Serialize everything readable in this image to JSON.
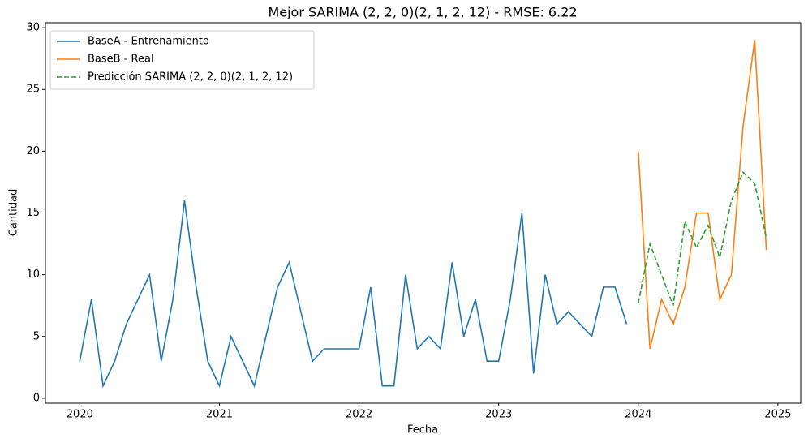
{
  "chart_data": {
    "type": "line",
    "title": "Mejor SARIMA (2, 2, 0)(2, 1, 2, 12) - RMSE: 6.22",
    "x_label": "Fecha",
    "y_label": "Cantidad",
    "xlim": [
      2019.754,
      2025.163
    ],
    "xticks": [
      2020,
      2021,
      2022,
      2023,
      2024,
      2025
    ],
    "ylim": [
      -0.4,
      30.4
    ],
    "yticks": [
      0,
      5,
      10,
      15,
      20,
      25,
      30
    ],
    "legend": "upper left",
    "grid": false,
    "series": [
      {
        "name": "BaseA - Entrenamiento",
        "color": "#1f77b4",
        "dash": "solid",
        "x": [
          2020,
          2020.0833,
          2020.1667,
          2020.25,
          2020.3333,
          2020.4167,
          2020.5,
          2020.5833,
          2020.6667,
          2020.75,
          2020.8333,
          2020.9167,
          2021,
          2021.0833,
          2021.1667,
          2021.25,
          2021.3333,
          2021.4167,
          2021.5,
          2021.5833,
          2021.6667,
          2021.75,
          2021.8333,
          2021.9167,
          2022,
          2022.0833,
          2022.1667,
          2022.25,
          2022.3333,
          2022.4167,
          2022.5,
          2022.5833,
          2022.6667,
          2022.75,
          2022.8333,
          2022.9167,
          2023,
          2023.0833,
          2023.1667,
          2023.25,
          2023.3333,
          2023.4167,
          2023.5,
          2023.5833,
          2023.6667,
          2023.75,
          2023.8333,
          2023.9167
        ],
        "values": [
          3,
          8,
          1,
          3,
          6,
          8,
          10,
          3,
          8,
          16,
          9,
          3,
          1,
          5,
          3,
          1,
          5,
          9,
          11,
          7,
          3,
          4,
          4,
          4,
          4,
          9,
          1,
          1,
          10,
          4,
          5,
          4,
          11,
          5,
          8,
          3,
          3,
          8,
          15,
          2,
          10,
          6,
          7,
          6,
          5,
          9,
          9,
          6
        ]
      },
      {
        "name": "BaseB - Real",
        "color": "#ff7f0e",
        "dash": "solid",
        "x": [
          2024,
          2024.0833,
          2024.1667,
          2024.25,
          2024.3333,
          2024.4167,
          2024.5,
          2024.5833,
          2024.6667,
          2024.75,
          2024.8333,
          2024.9167
        ],
        "values": [
          20,
          4,
          8,
          6,
          9,
          15,
          15,
          8,
          10,
          22,
          29,
          12
        ]
      },
      {
        "name": "Predicción SARIMA (2, 2, 0)(2, 1, 2, 12)",
        "color": "#2ca02c",
        "dash": "dashed",
        "x": [
          2024,
          2024.0833,
          2024.1667,
          2024.25,
          2024.3333,
          2024.4167,
          2024.5,
          2024.5833,
          2024.6667,
          2024.75,
          2024.8333,
          2024.9167
        ],
        "values": [
          7.7,
          12.5,
          10,
          7.5,
          14.3,
          12.2,
          14,
          11.4,
          16,
          18.3,
          17.4,
          13
        ]
      }
    ]
  }
}
